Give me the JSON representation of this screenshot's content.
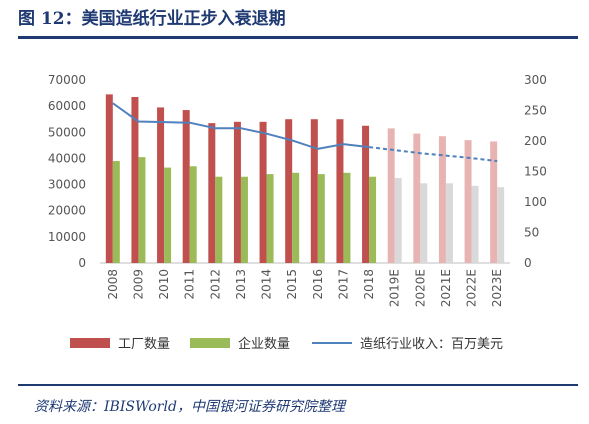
{
  "title": "图 12：美国造纸行业正步入衰退期",
  "source": "资料来源：IBISWorld，中国银河证券研究院整理",
  "chart_data": {
    "type": "bar",
    "categories": [
      "2008",
      "2009",
      "2010",
      "2011",
      "2012",
      "2013",
      "2014",
      "2015",
      "2016",
      "2017",
      "2018",
      "2019E",
      "2020E",
      "2021E",
      "2022E",
      "2023E"
    ],
    "series": [
      {
        "name": "工厂数量",
        "kind": "bar",
        "axis": "left",
        "color": "#c0504d",
        "forecast_color": "#e8b4b3",
        "values": [
          64500,
          63500,
          59500,
          58500,
          53500,
          54000,
          54000,
          55000,
          55000,
          55000,
          52500,
          51500,
          49500,
          48500,
          47000,
          46500
        ]
      },
      {
        "name": "企业数量",
        "kind": "bar",
        "axis": "left",
        "color": "#9bbb59",
        "forecast_color": "#d9d9d9",
        "values": [
          39000,
          40500,
          36500,
          37000,
          33000,
          33000,
          34000,
          34500,
          34000,
          34500,
          33000,
          32500,
          30500,
          30500,
          29500,
          29000
        ]
      },
      {
        "name": "造纸行业收入：百万美元",
        "kind": "line",
        "axis": "right",
        "color": "#4f81bd",
        "values": [
          262,
          232,
          231,
          230,
          221,
          221,
          212,
          201,
          187,
          195,
          190,
          185,
          180,
          176,
          172,
          167
        ]
      }
    ],
    "forecast_start_index": 11,
    "y_left": {
      "min": 0,
      "max": 70000,
      "ticks": [
        "0",
        "10000",
        "20000",
        "30000",
        "40000",
        "50000",
        "60000",
        "70000"
      ]
    },
    "y_right": {
      "min": 0,
      "max": 300,
      "ticks": [
        "0",
        "50",
        "100",
        "150",
        "200",
        "250",
        "300"
      ]
    },
    "legend_position": "bottom",
    "grid": false
  }
}
